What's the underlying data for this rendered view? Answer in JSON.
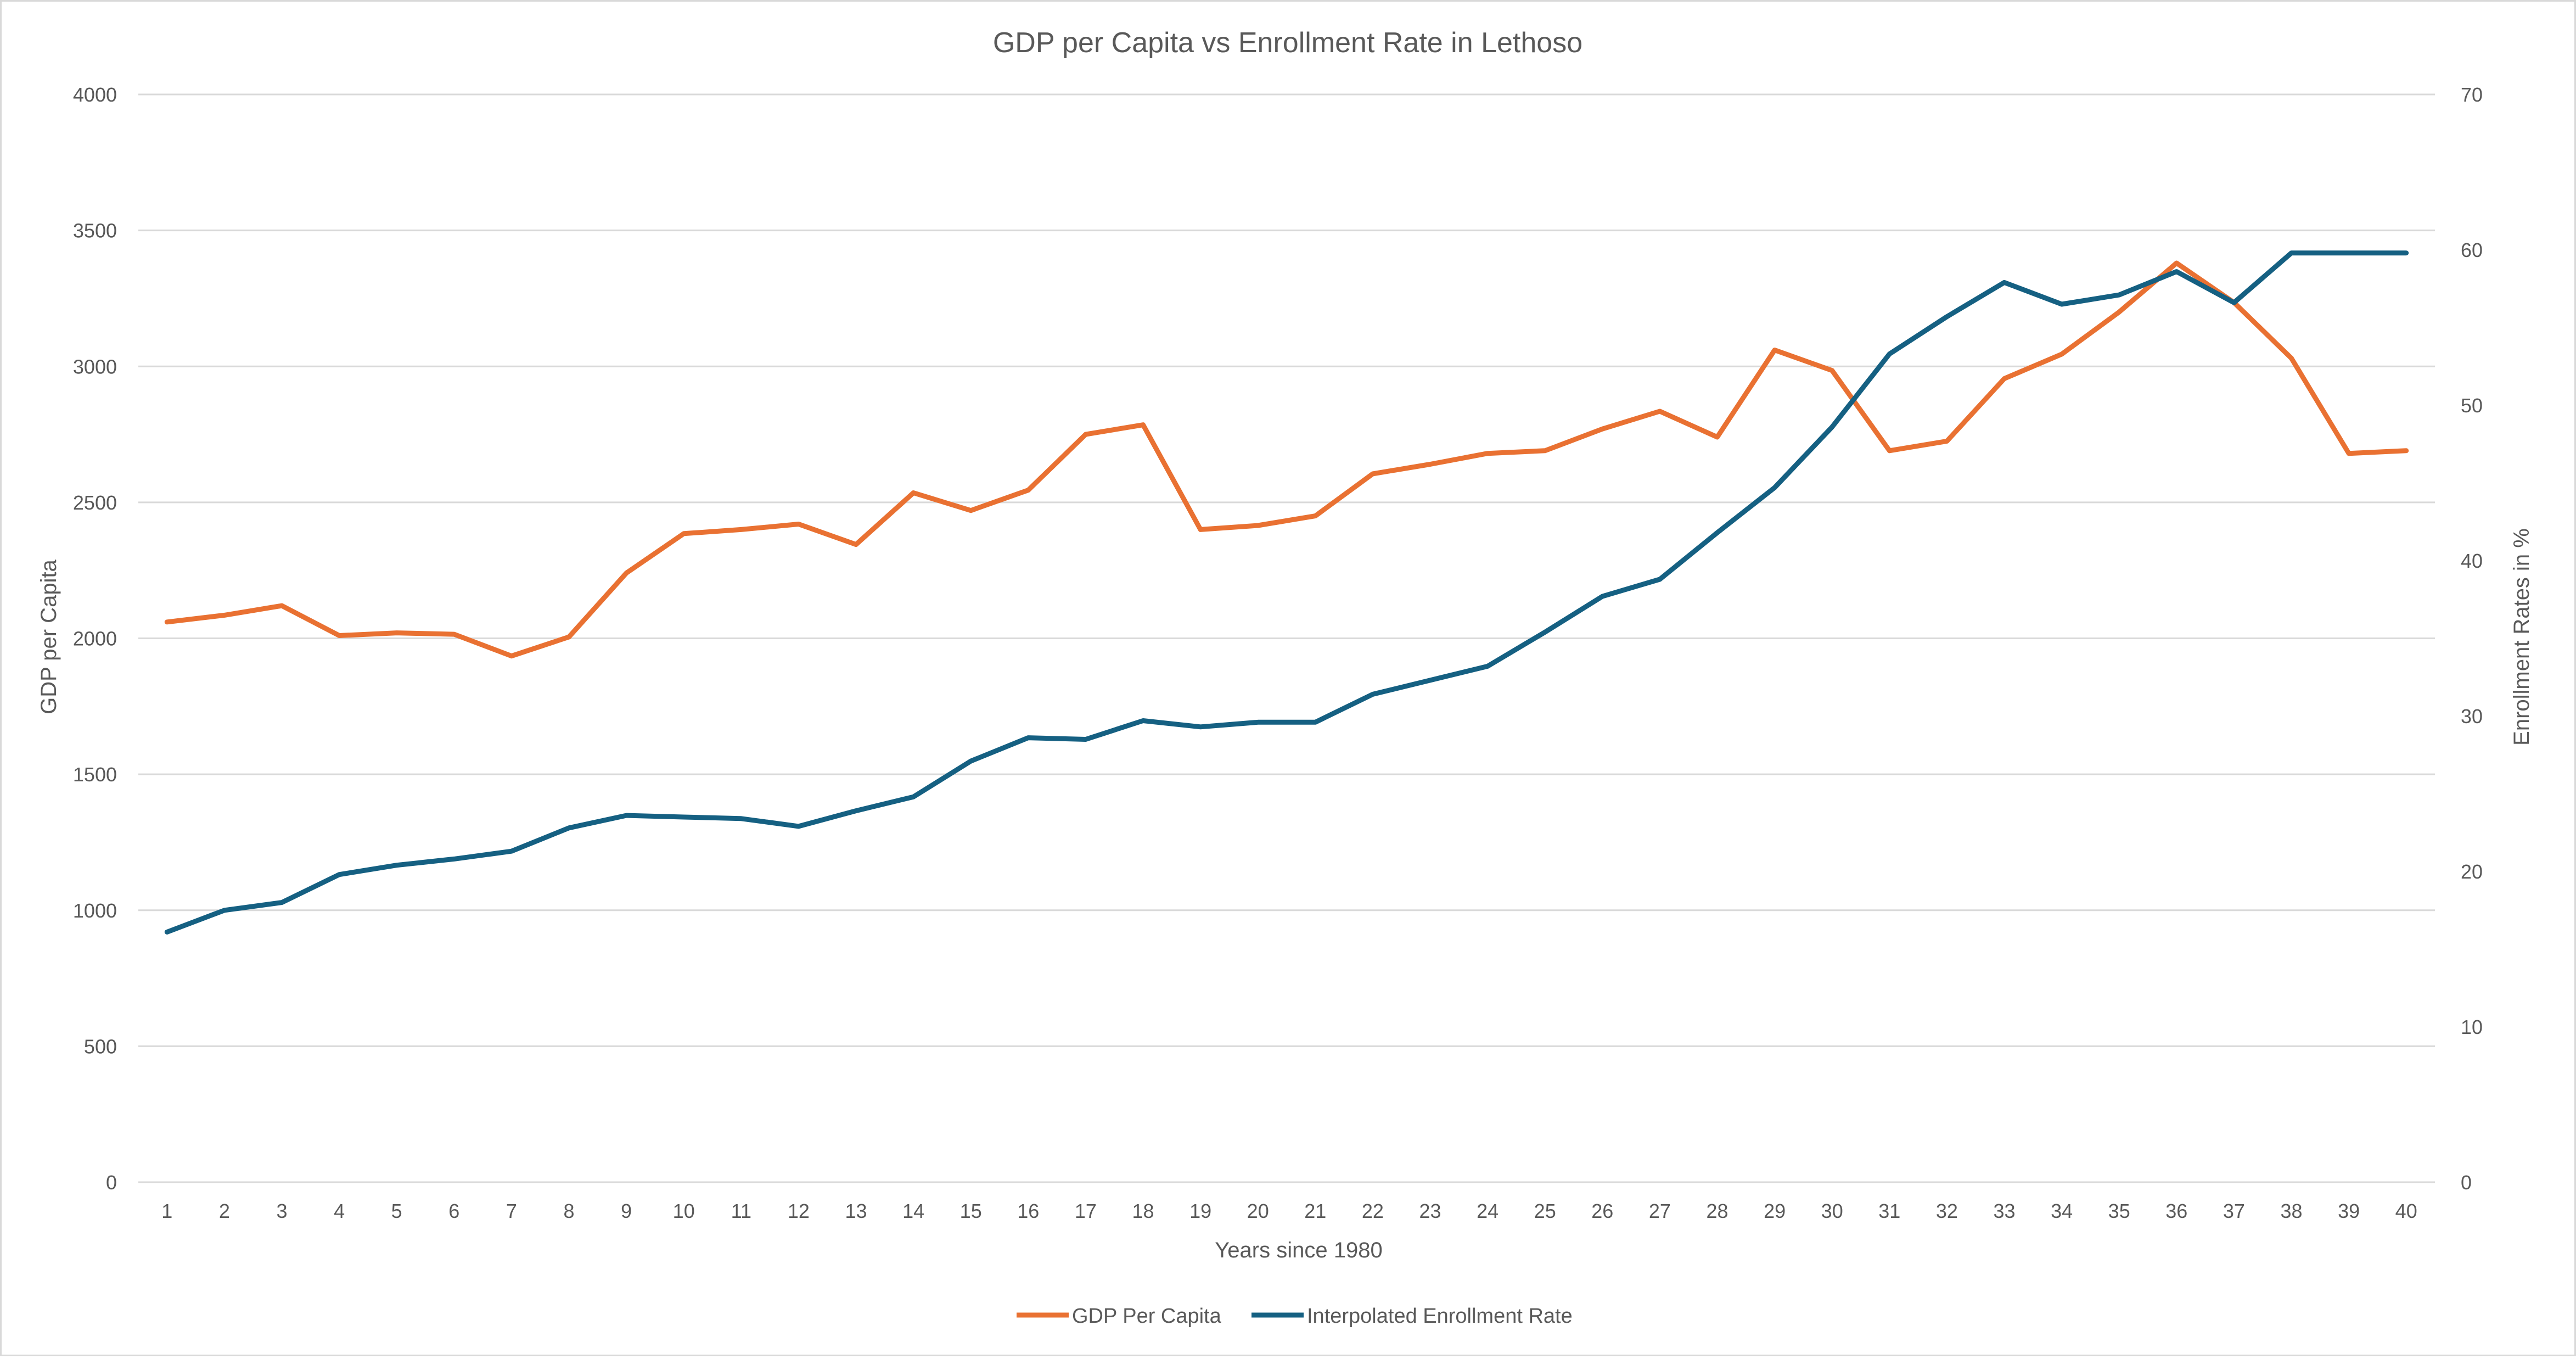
{
  "chart_data": {
    "type": "line",
    "title": "GDP per Capita vs Enrollment Rate in Lethoso",
    "xlabel": "Years since 1980",
    "ylabel": "GDP per Capita",
    "y2label": "Enrollment Rates in %",
    "x": [
      1,
      2,
      3,
      4,
      5,
      6,
      7,
      8,
      9,
      10,
      11,
      12,
      13,
      14,
      15,
      16,
      17,
      18,
      19,
      20,
      21,
      22,
      23,
      24,
      25,
      26,
      27,
      28,
      29,
      30,
      31,
      32,
      33,
      34,
      35,
      36,
      37,
      38,
      39,
      40
    ],
    "ylim": [
      0,
      4000
    ],
    "yticks": [
      0,
      500,
      1000,
      1500,
      2000,
      2500,
      3000,
      3500,
      4000
    ],
    "y2lim": [
      0,
      70
    ],
    "y2ticks": [
      0,
      10,
      20,
      30,
      40,
      50,
      60,
      70
    ],
    "grid": true,
    "legend_position": "bottom",
    "series": [
      {
        "name": "GDP Per Capita",
        "axis": "left",
        "color": "#E97132",
        "values": [
          2060,
          2085,
          2120,
          2010,
          2020,
          2015,
          1935,
          2005,
          2240,
          2385,
          2400,
          2420,
          2345,
          2535,
          2470,
          2545,
          2750,
          2785,
          2400,
          2415,
          2450,
          2605,
          2640,
          2680,
          2690,
          2770,
          2835,
          2740,
          3060,
          2985,
          2690,
          2725,
          2955,
          3045,
          3200,
          3380,
          3235,
          3030,
          2680,
          2690
        ]
      },
      {
        "name": "Interpolated Enrollment Rate",
        "axis": "right",
        "color": "#156082",
        "values": [
          16.1,
          17.5,
          18.0,
          19.8,
          20.4,
          20.8,
          21.3,
          22.8,
          23.6,
          23.5,
          23.4,
          22.9,
          23.9,
          24.8,
          27.1,
          28.6,
          28.5,
          29.7,
          29.3,
          29.6,
          29.6,
          31.4,
          32.3,
          33.2,
          35.4,
          37.7,
          38.8,
          41.8,
          44.7,
          48.6,
          53.3,
          55.7,
          57.9,
          56.5,
          57.1,
          58.6,
          56.6,
          59.8,
          59.8,
          59.8
        ]
      }
    ]
  }
}
